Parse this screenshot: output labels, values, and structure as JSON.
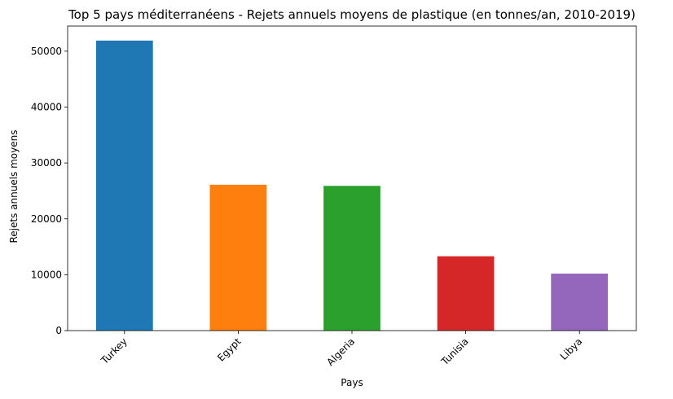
{
  "chart_data": {
    "type": "bar",
    "title": "Top 5 pays méditerranéens - Rejets annuels moyens de plastique (en tonnes/an, 2010-2019)",
    "xlabel": "Pays",
    "ylabel": "Rejets annuels moyens",
    "categories": [
      "Turkey",
      "Egypt",
      "Algeria",
      "Tunisia",
      "Libya"
    ],
    "values": [
      51900,
      26100,
      25900,
      13300,
      10200
    ],
    "colors": [
      "#1f77b4",
      "#ff7f0e",
      "#2ca02c",
      "#d62728",
      "#9467bd"
    ],
    "ylim": [
      0,
      54500
    ],
    "yticks": [
      0,
      10000,
      20000,
      30000,
      40000,
      50000
    ],
    "grid": false,
    "legend": "none"
  }
}
